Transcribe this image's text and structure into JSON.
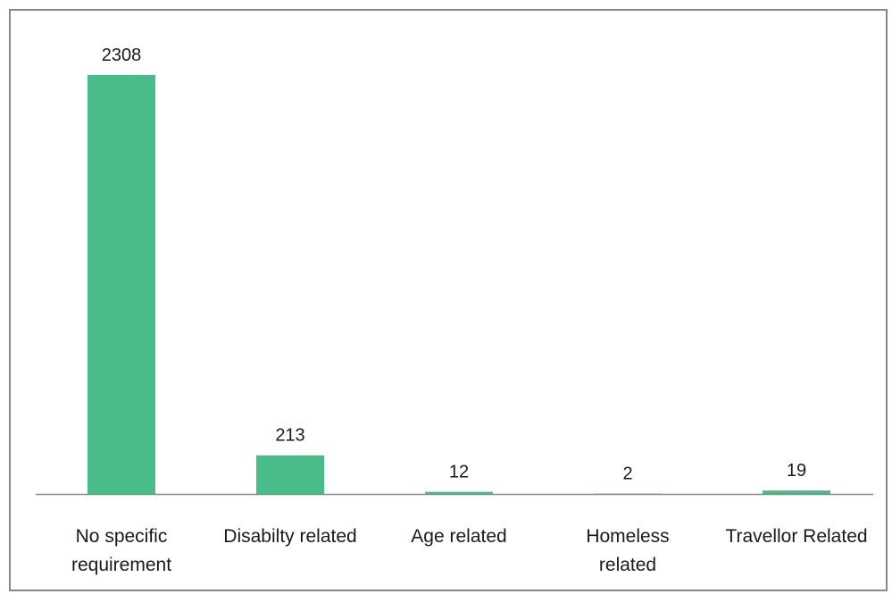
{
  "chart_data": {
    "type": "bar",
    "categories": [
      [
        "No specific",
        "requirement"
      ],
      [
        "Disabilty related"
      ],
      [
        "Age related"
      ],
      [
        "Homeless",
        "related"
      ],
      [
        "Travellor Related"
      ]
    ],
    "values": [
      2308,
      213,
      12,
      2,
      19
    ],
    "data_labels": [
      "2308",
      "213",
      "12",
      "2",
      "19"
    ],
    "title": "",
    "xlabel": "",
    "ylabel": "",
    "ylim": [
      0,
      2308
    ],
    "grid": false,
    "legend": "none",
    "bar_color": "#48bd89",
    "axis_color": "#888888"
  }
}
